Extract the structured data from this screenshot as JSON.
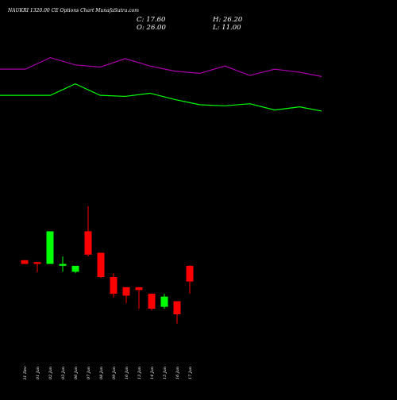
{
  "header": {
    "title": "NAUKRI 1320.00  CE Options  Chart MunafaSutra.com",
    "close": "C: 17.60",
    "high": "H: 26.20",
    "open": "O: 26.00",
    "low": "L: 11.00"
  },
  "colors": {
    "background": "#000000",
    "green_line": "#00ff00",
    "purple_line": "#aa00aa",
    "bull_candle": "#00ff00",
    "bear_candle": "#ff0000",
    "text": "#ffffff"
  },
  "chart_data": [
    {
      "type": "line",
      "series": [
        {
          "values": [
            91,
            91,
            91,
            80,
            91,
            92,
            89,
            95,
            100,
            101,
            99,
            105,
            102,
            106
          ]
        },
        {
          "values": [
            66,
            66,
            55,
            62,
            64,
            56,
            63,
            68,
            70,
            63,
            72,
            66,
            69,
            73
          ]
        }
      ],
      "x": [
        "31 Dec",
        "01 Jan",
        "02 Jan",
        "03 Jan",
        "06 Jan",
        "07 Jan",
        "08 Jan",
        "09 Jan",
        "10 Jan",
        "13 Jan",
        "14 Jan",
        "15 Jan",
        "16 Jan",
        "17 Jan"
      ]
    },
    {
      "type": "candlestick",
      "categories": [
        "31 Dec",
        "01 Jan",
        "02 Jan",
        "03 Jan",
        "06 Jan",
        "07 Jan",
        "08 Jan",
        "09 Jan",
        "10 Jan",
        "13 Jan",
        "14 Jan",
        "15 Jan",
        "16 Jan",
        "17 Jan"
      ],
      "ohlc": [
        {
          "o": 29.0,
          "h": 29.0,
          "l": 27.0,
          "c": 27.0
        },
        {
          "o": 28.0,
          "h": 28.0,
          "l": 22.5,
          "c": 27.0
        },
        {
          "o": 27.0,
          "h": 44.5,
          "l": 27.0,
          "c": 44.5
        },
        {
          "o": 26.0,
          "h": 31.0,
          "l": 22.8,
          "c": 27.0
        },
        {
          "o": 22.8,
          "h": 25.5,
          "l": 22.0,
          "c": 26.0
        },
        {
          "o": 44.5,
          "h": 58.0,
          "l": 31.0,
          "c": 32.0
        },
        {
          "o": 33.0,
          "h": 33.0,
          "l": 19.5,
          "c": 20.0
        },
        {
          "o": 20.0,
          "h": 22.0,
          "l": 9.0,
          "c": 11.0
        },
        {
          "o": 14.5,
          "h": 14.5,
          "l": 6.0,
          "c": 10.0
        },
        {
          "o": 14.5,
          "h": 14.5,
          "l": 3.0,
          "c": 13.0
        },
        {
          "o": 11.0,
          "h": 11.0,
          "l": 2.0,
          "c": 3.0
        },
        {
          "o": 4.0,
          "h": 11.0,
          "l": 3.0,
          "c": 9.5
        },
        {
          "o": 7.0,
          "h": 7.0,
          "l": -5.0,
          "c": 0.0
        },
        {
          "o": 26.0,
          "h": 26.2,
          "l": 11.0,
          "c": 17.6
        }
      ]
    }
  ]
}
